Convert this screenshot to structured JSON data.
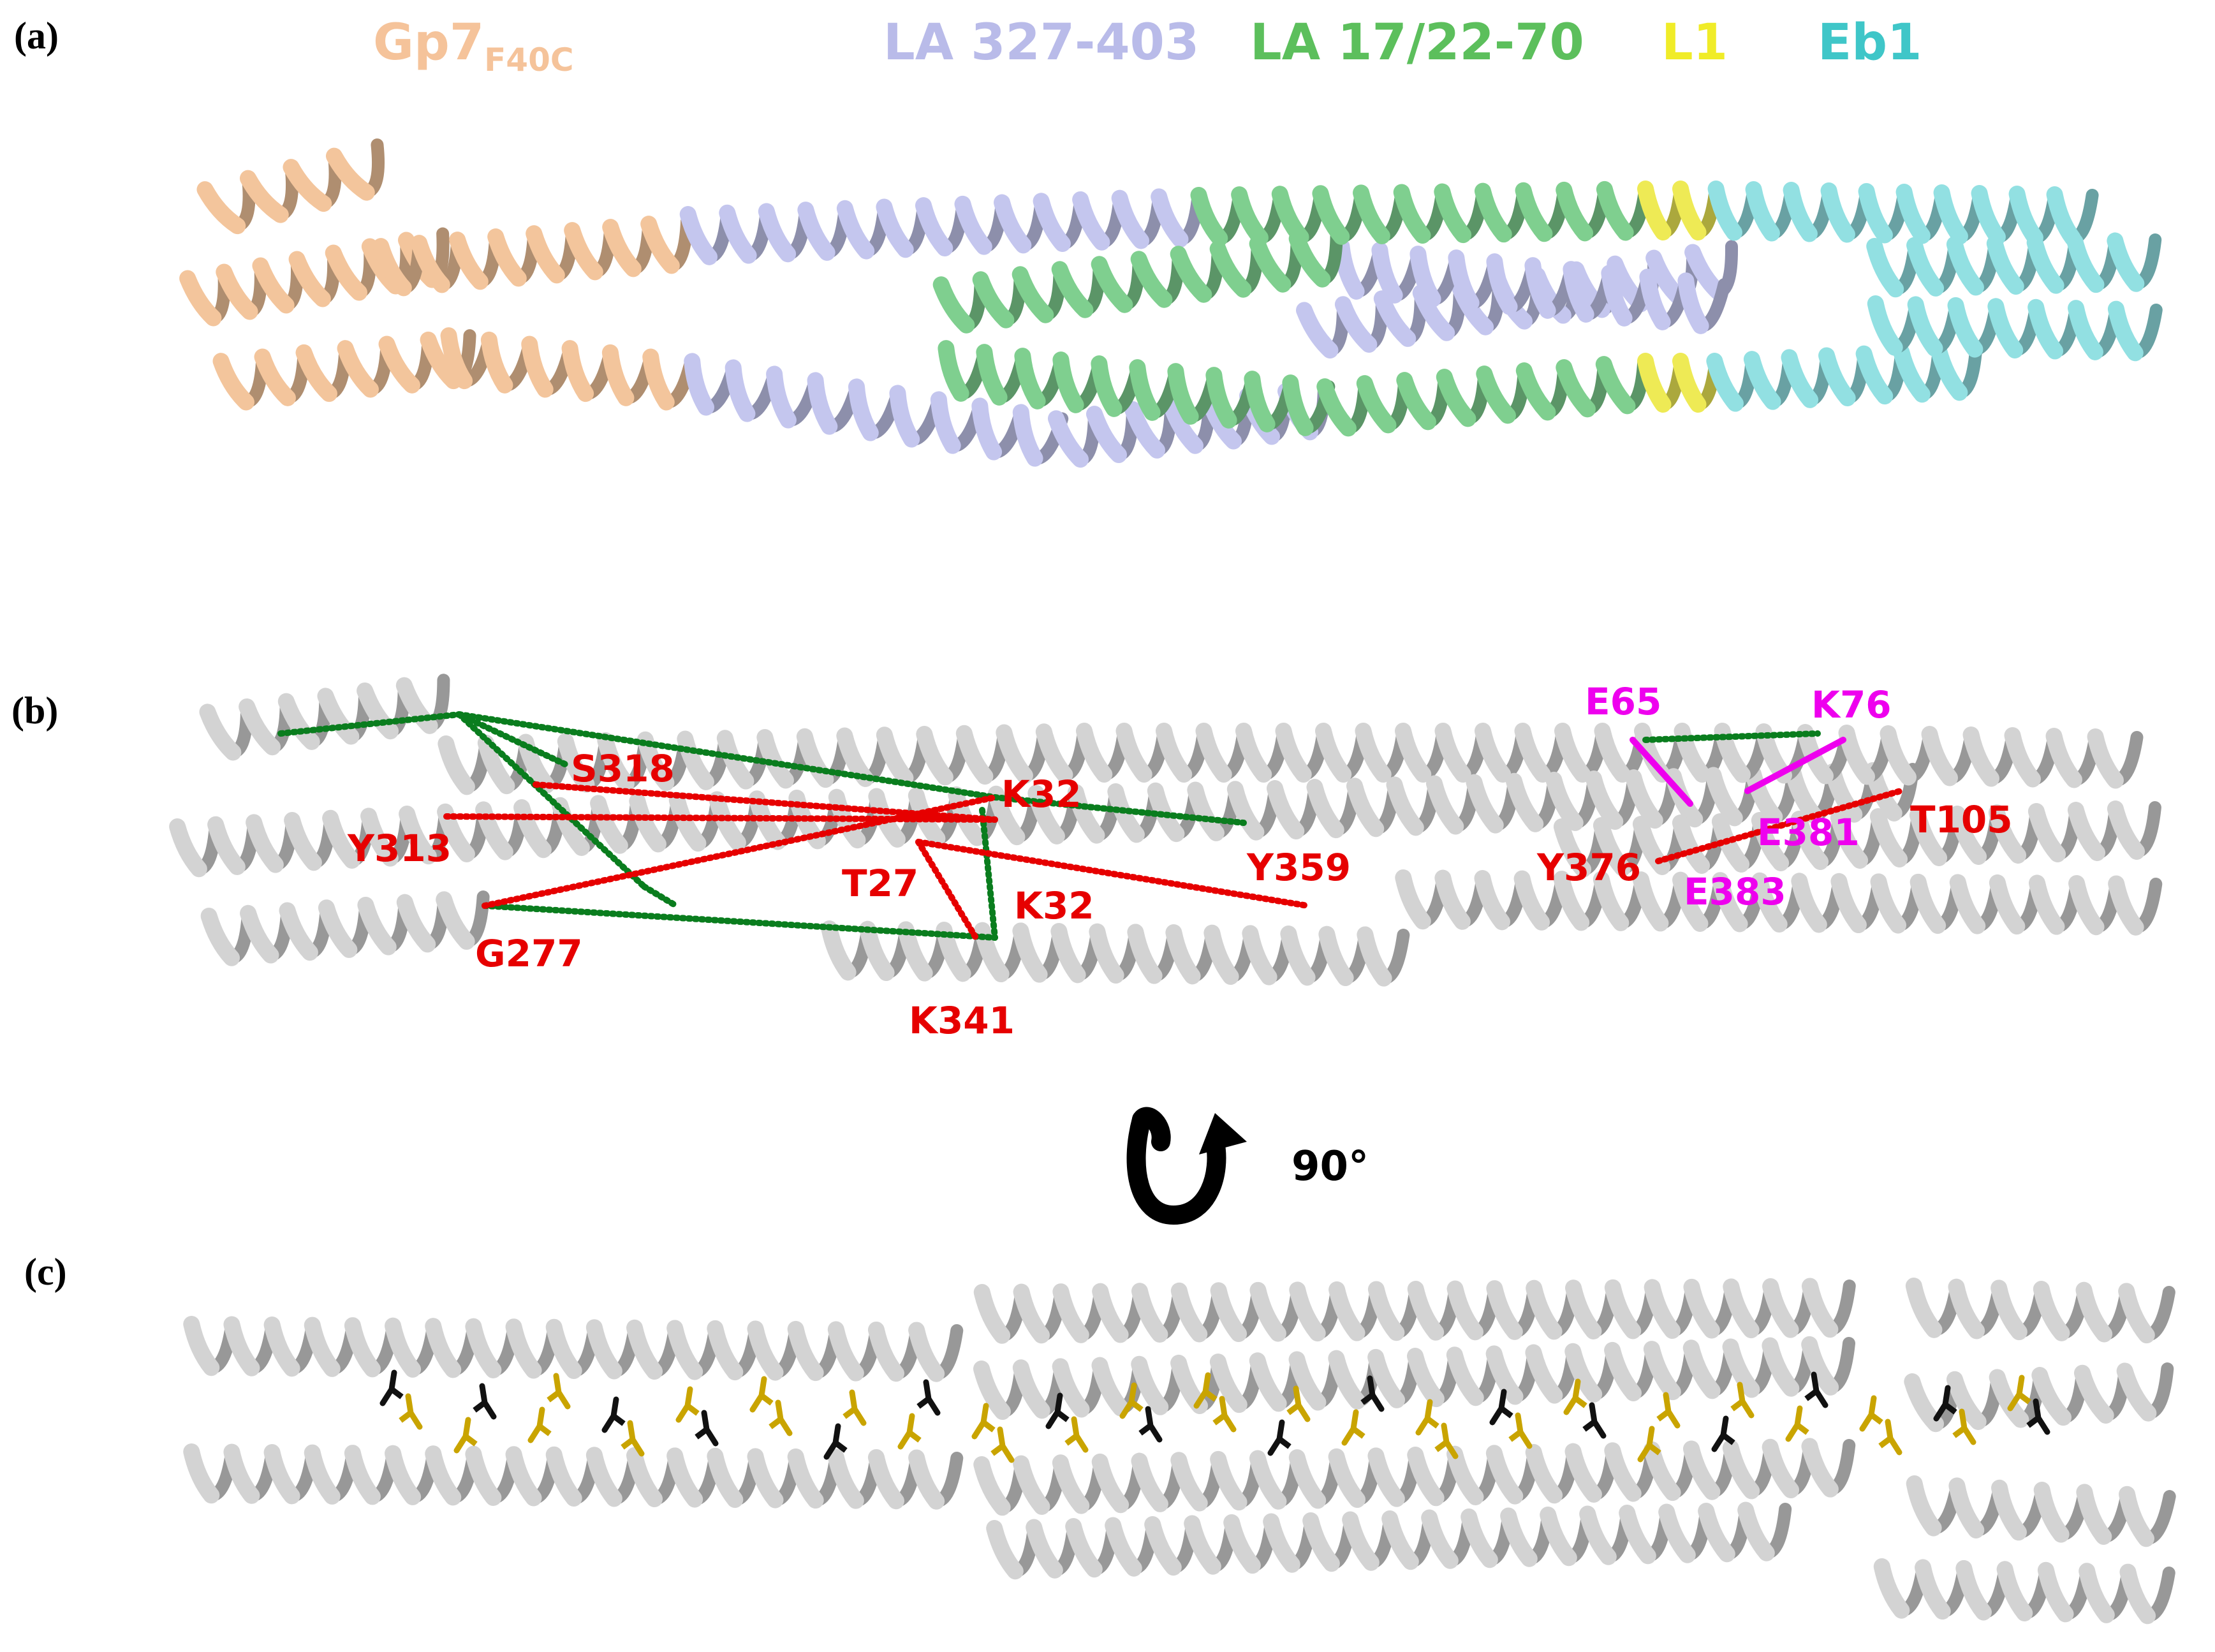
{
  "panels": {
    "a": "(a)",
    "b": "(b)",
    "c": "(c)"
  },
  "legend": [
    {
      "text": "Gp7",
      "sub": "F40C",
      "color": "#f5c39a"
    },
    {
      "text": "LA 327-403",
      "sub": "",
      "color": "#b9bbe9"
    },
    {
      "text": "LA 17/22-70",
      "sub": "",
      "color": "#5cbf5c"
    },
    {
      "text": "L1",
      "sub": "",
      "color": "#f0ec28"
    },
    {
      "text": "Eb1",
      "sub": "",
      "color": "#3fc6c8"
    }
  ],
  "residues_red": {
    "S318": "S318",
    "Y313": "Y313",
    "G277": "G277",
    "K32_top": "K32",
    "T27": "T27",
    "K32_bottom": "K32",
    "K341": "K341",
    "Y359": "Y359",
    "Y376": "Y376",
    "T105": "T105"
  },
  "residues_magenta": {
    "E65": "E65",
    "K76": "K76",
    "E381": "E381",
    "E383": "E383"
  },
  "rotation": {
    "label": "90°"
  },
  "colors": {
    "gp7": "#f3c59c",
    "la327": "#c4c6ee",
    "la17": "#7fcf8f",
    "l1": "#eeea55",
    "eb1": "#92e0e2",
    "gray_helix": "#d3d3d3",
    "crosslink_red": "#e60000",
    "crosslink_green": "#0a7d1e",
    "residue_magenta": "#ee00ee",
    "stick_gold": "#c9a400",
    "stick_black": "#111111"
  }
}
